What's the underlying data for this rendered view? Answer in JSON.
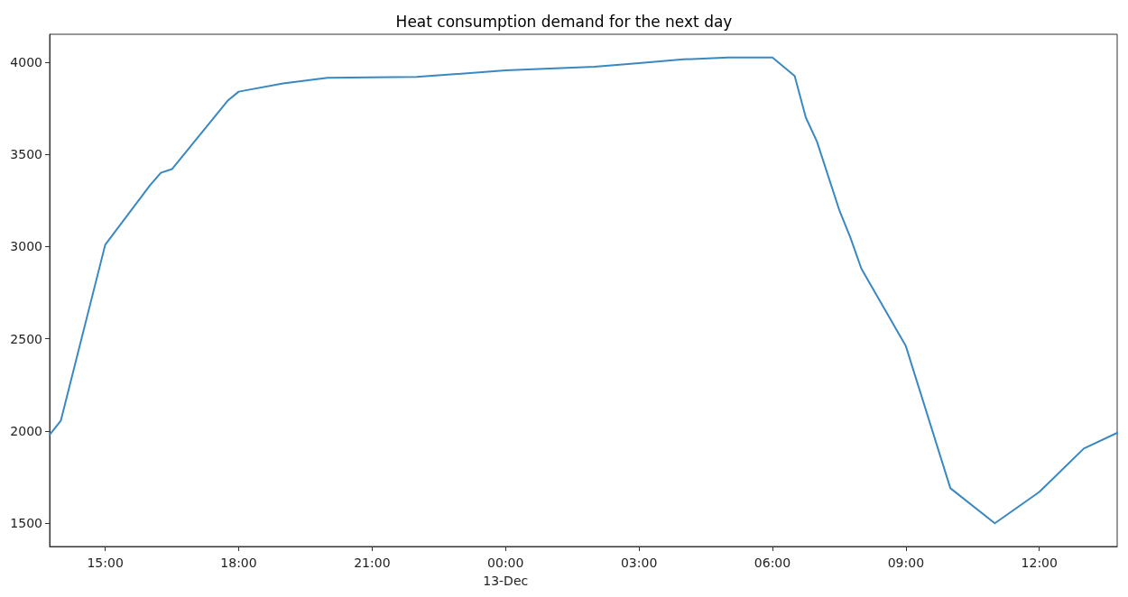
{
  "chart_data": {
    "type": "line",
    "title": "Heat consumption demand for the next day",
    "x": [
      "--12-12T13:45",
      "--12-12T14:00",
      "--12-12T15:00",
      "--12-12T16:00",
      "--12-12T16:15",
      "--12-12T16:30",
      "--12-12T17:45",
      "--12-12T18:00",
      "--12-12T19:00",
      "--12-12T20:00",
      "--12-12T22:00",
      "--12-13T00:00",
      "--12-13T02:00",
      "--12-13T03:00",
      "--12-13T04:00",
      "--12-13T05:00",
      "--12-13T06:00",
      "--12-13T06:30",
      "--12-13T06:45",
      "--12-13T07:00",
      "--12-13T07:30",
      "--12-13T07:45",
      "--12-13T08:00",
      "--12-13T09:00",
      "--12-13T10:00",
      "--12-13T11:00",
      "--12-13T12:00",
      "--12-13T13:00",
      "--12-13T13:45"
    ],
    "series": [
      {
        "color": "#3a88c2",
        "values": [
          1980,
          2055,
          3010,
          3330,
          3400,
          3420,
          3790,
          3840,
          3885,
          3915,
          3920,
          3955,
          3975,
          3995,
          4015,
          4025,
          4025,
          3925,
          3700,
          3570,
          3200,
          3050,
          2880,
          2460,
          1690,
          1500,
          1670,
          1905,
          1990
        ]
      }
    ],
    "xlim": [
      "--12-12T13:45",
      "--12-13T13:45"
    ],
    "xticks": [
      {
        "value": "--12-12T15:00",
        "label": "15:00"
      },
      {
        "value": "--12-12T18:00",
        "label": "18:00"
      },
      {
        "value": "--12-12T21:00",
        "label": "21:00"
      },
      {
        "value": "--12-13T00:00",
        "label": "00:00\n13-Dec"
      },
      {
        "value": "--12-13T03:00",
        "label": "03:00"
      },
      {
        "value": "--12-13T06:00",
        "label": "06:00"
      },
      {
        "value": "--12-13T09:00",
        "label": "09:00"
      },
      {
        "value": "--12-13T12:00",
        "label": "12:00"
      }
    ],
    "ylim": [
      1374,
      4151
    ],
    "yticks": [
      1500,
      2000,
      2500,
      3000,
      3500,
      4000
    ],
    "grid": false,
    "marker": "none",
    "line_style": "solid"
  }
}
